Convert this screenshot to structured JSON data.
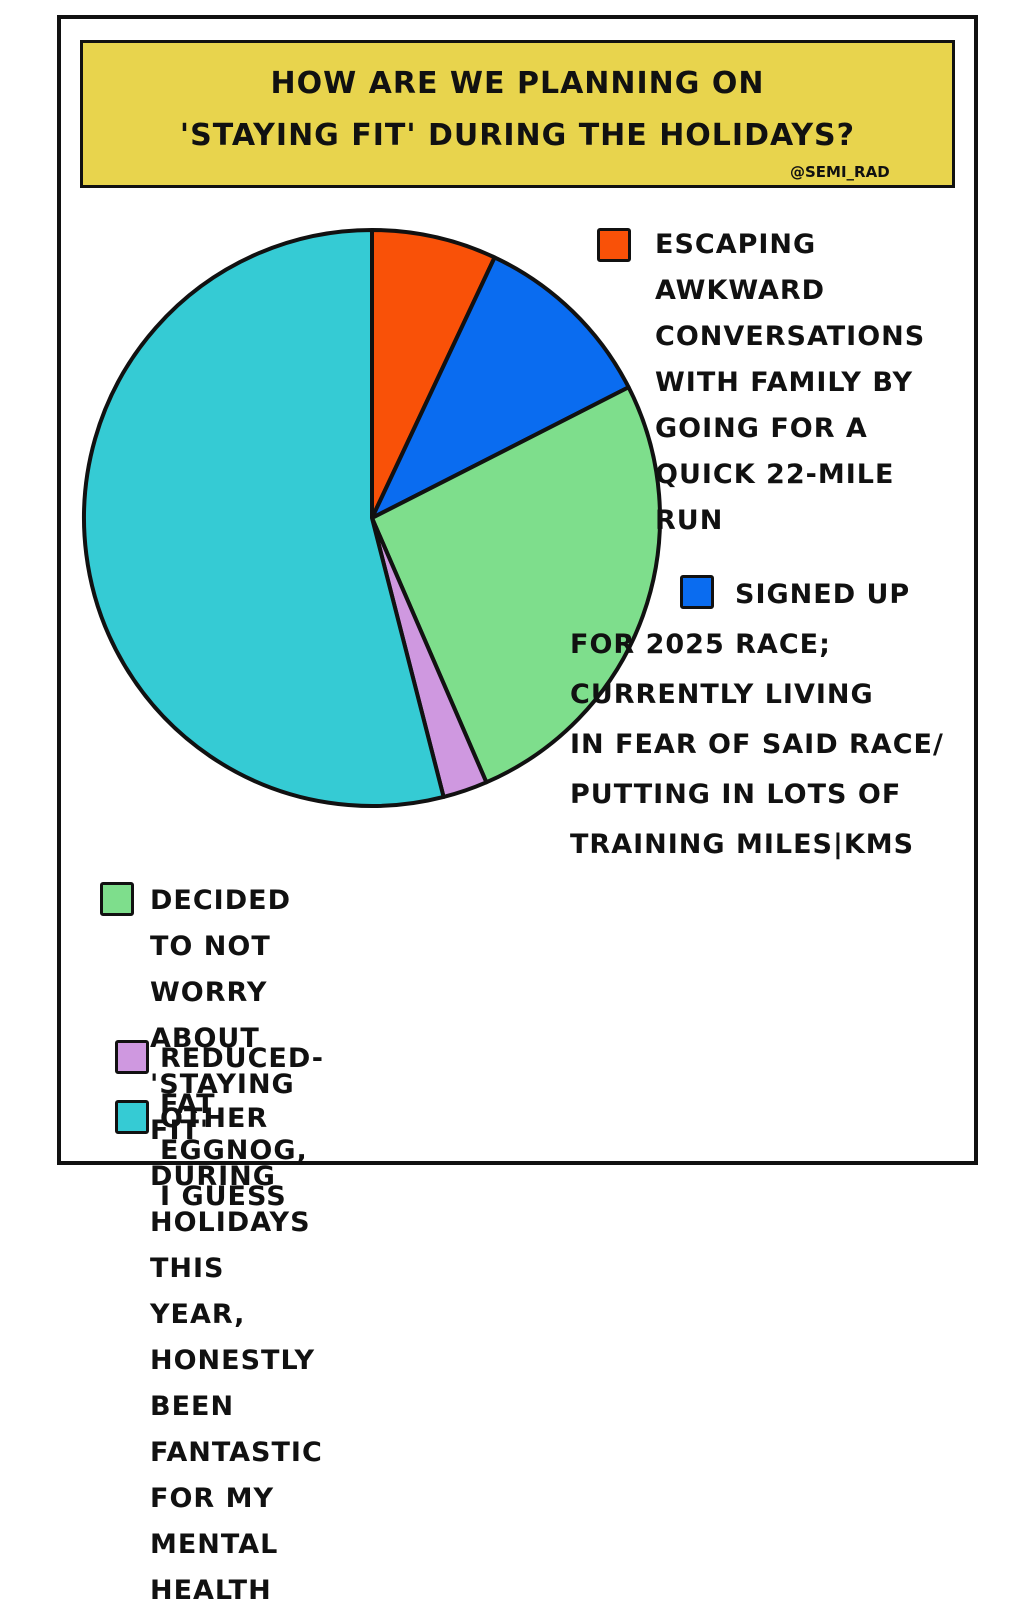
{
  "chart_data": {
    "type": "pie",
    "title": "HOW ARE WE PLANNING ON\n'STAYING FIT' DURING THE HOLIDAYS?",
    "credit": "@SEMI_RAD",
    "categories": [
      "ESCAPING\nAWKWARD\nCONVERSATIONS\nWITH FAMILY BY\nGOING FOR A\nQUICK 22-MILE\nRUN",
      "SIGNED UP\nFOR 2025 RACE;\nCURRENTLY LIVING\nIN FEAR OF SAID RACE/\nPUTTING IN LOTS OF\nTRAINING MILES|KMS",
      "DECIDED TO NOT WORRY ABOUT 'STAYING\nFIT' DURING HOLIDAYS THIS YEAR, HONESTLY\nBEEN FANTASTIC FOR MY MENTAL HEALTH",
      "REDUCED-FAT EGGNOG, I GUESS",
      "OTHER"
    ],
    "values": [
      7,
      10.5,
      26,
      2.5,
      54
    ],
    "colors": [
      "#f95108",
      "#0a6cf0",
      "#7ede8c",
      "#cf98e0",
      "#35cbd4"
    ]
  }
}
